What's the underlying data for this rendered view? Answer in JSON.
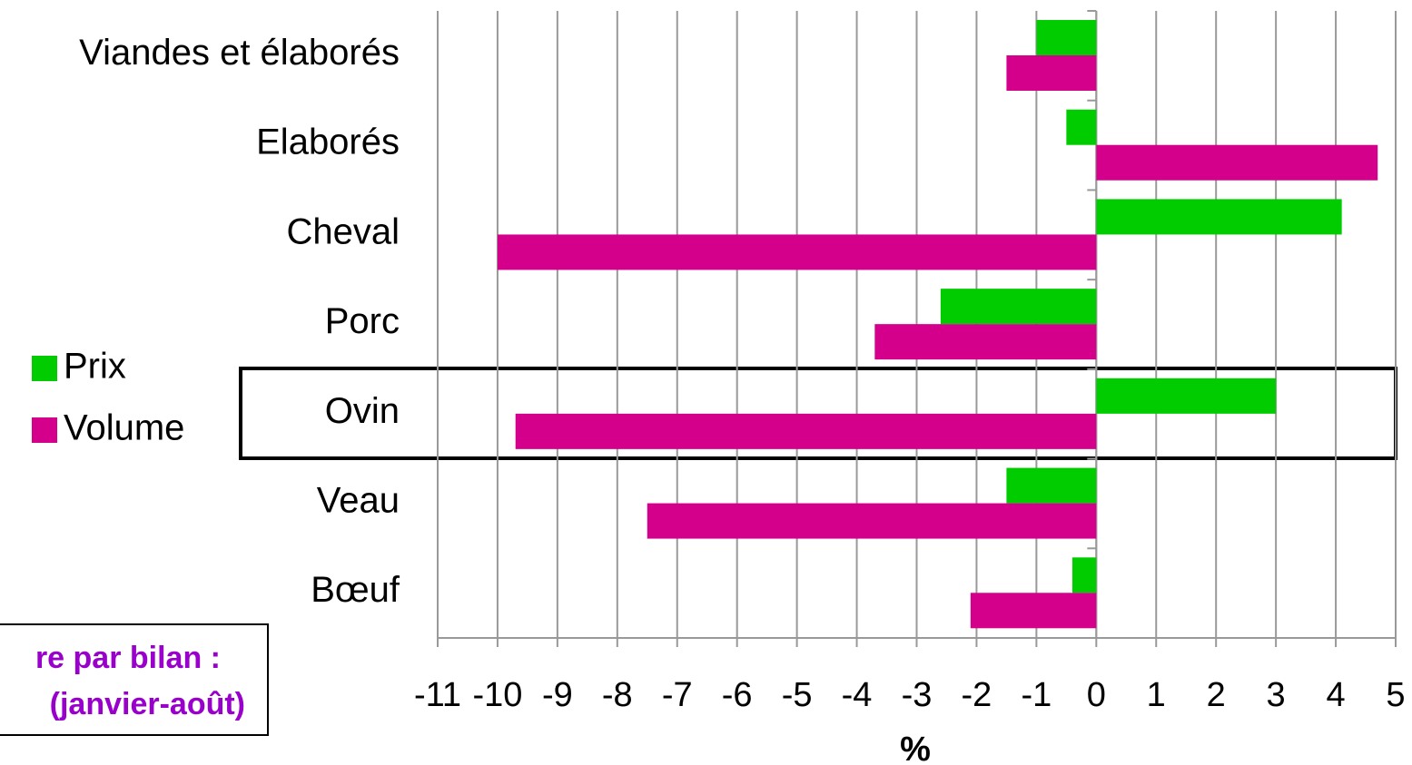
{
  "chart_data": {
    "type": "bar",
    "orientation": "horizontal",
    "categories": [
      "Viandes et élaborés",
      "Elaborés",
      "Cheval",
      "Porc",
      "Ovin",
      "Veau",
      "Bœuf"
    ],
    "series": [
      {
        "name": "Prix",
        "color": "#00cc00",
        "values": [
          -1.0,
          -0.5,
          4.1,
          -2.6,
          3.0,
          -1.5,
          -0.4
        ]
      },
      {
        "name": "Volume",
        "color": "#d4008c",
        "values": [
          -1.5,
          4.7,
          -10.0,
          -3.7,
          -9.7,
          -7.5,
          -2.1
        ]
      }
    ],
    "xlim": [
      -11,
      5
    ],
    "xticks": [
      -11,
      -10,
      -9,
      -8,
      -7,
      -6,
      -5,
      -4,
      -3,
      -2,
      -1,
      0,
      1,
      2,
      3,
      4,
      5
    ],
    "xlabel": "%",
    "grid": true,
    "legend": "left",
    "annotation": [
      "re par bilan :",
      "(janvier-août)"
    ]
  }
}
